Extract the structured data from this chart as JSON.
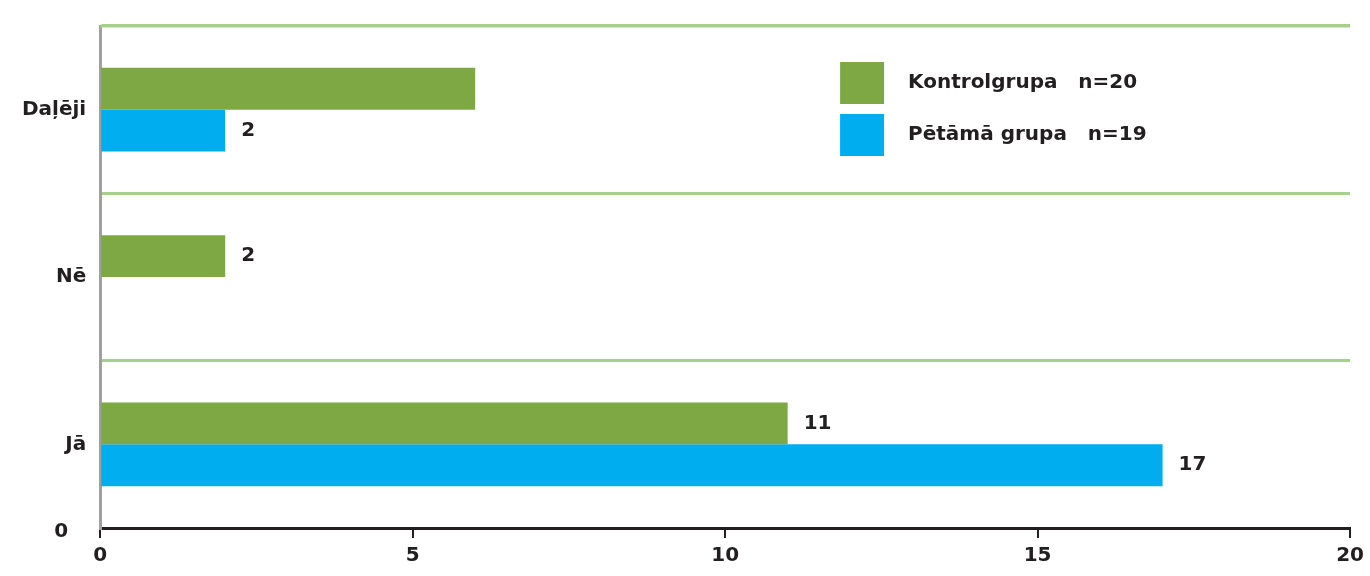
{
  "chart_data": {
    "type": "bar",
    "orientation": "horizontal",
    "categories": [
      "Daļēji",
      "Nē",
      "Jā"
    ],
    "series": [
      {
        "name": "Kontrolgrupa     n=20",
        "color": "#7ea843",
        "values": [
          6,
          2,
          11
        ],
        "value_labels": [
          null,
          "2",
          "11"
        ]
      },
      {
        "name": "Pētāmā grupa     n=19",
        "color": "#00aeef",
        "values": [
          2,
          null,
          17
        ],
        "value_labels": [
          "2",
          null,
          "17"
        ]
      }
    ],
    "xlim": [
      0,
      20
    ],
    "xticks": [
      0,
      5,
      10,
      15,
      20
    ],
    "grid": "y",
    "legend": "top right",
    "annotations": [
      "0"
    ]
  }
}
